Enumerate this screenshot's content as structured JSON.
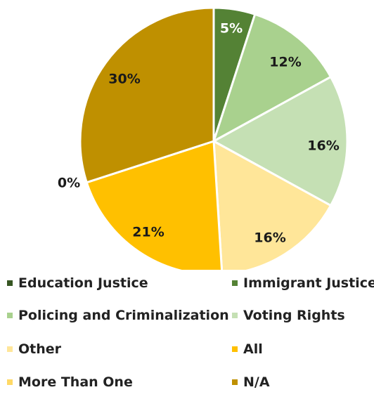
{
  "chart_data": {
    "type": "pie",
    "start_angle_deg": 0,
    "direction": "clockwise",
    "slices": [
      {
        "name": "Education Justice",
        "value": 0,
        "label": "",
        "color": "#375623"
      },
      {
        "name": "Immigrant Justice",
        "value": 5,
        "label": "5%",
        "color": "#548235"
      },
      {
        "name": "Policing and Criminalization",
        "value": 12,
        "label": "12%",
        "color": "#a9d18e"
      },
      {
        "name": "Voting Rights",
        "value": 16,
        "label": "16%",
        "color": "#c5e0b4"
      },
      {
        "name": "Other",
        "value": 16,
        "label": "16%",
        "color": "#ffe699"
      },
      {
        "name": "All",
        "value": 21,
        "label": "21%",
        "color": "#ffc000"
      },
      {
        "name": "More Than One",
        "value": 0,
        "label": "0%",
        "color": "#ffd966"
      },
      {
        "name": "N/A",
        "value": 30,
        "label": "30%",
        "color": "#bf9000"
      }
    ],
    "legend_position": "bottom"
  }
}
